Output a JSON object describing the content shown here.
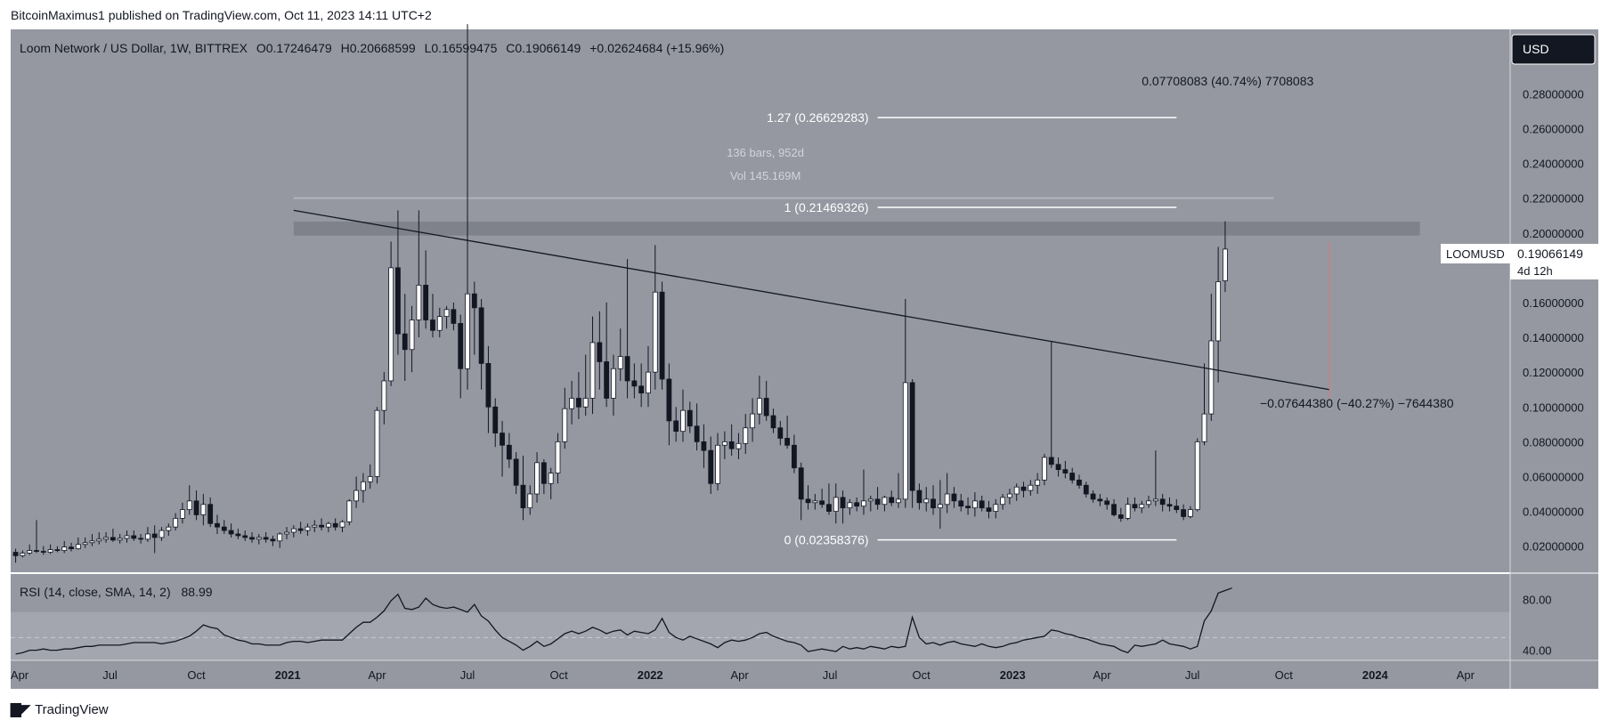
{
  "header": {
    "publisher": "BitcoinMaximus1 published on TradingView.com, Oct 11, 2023 14:11 UTC+2"
  },
  "footer": {
    "brand": "TradingView",
    "logo_icon": "tradingview-logo-icon"
  },
  "colors": {
    "pane_bg": "#9598a1",
    "rsi_band": "#a3a6ae",
    "resistance_zone": "#7f828b",
    "candle_up": "#ffffff",
    "candle_down": "#131722",
    "text_dark": "#131722",
    "text_light": "#d1d4dc",
    "projection_line": "#e57373"
  },
  "chart_data": {
    "type": "candlestick",
    "legend": {
      "symbol": "Loom Network / US Dollar, 1W, BITTREX",
      "o_label": "O",
      "o_value": "0.17246479",
      "h_label": "H",
      "h_value": "0.20668599",
      "l_label": "L",
      "l_value": "0.16599475",
      "c_label": "C",
      "c_value": "0.19066149",
      "change": "+0.02624684 (+15.96%)"
    },
    "currency_button": "USD",
    "price_axis": {
      "ylim": [
        0.005,
        0.317
      ],
      "ticks": [
        "0.28000000",
        "0.26000000",
        "0.24000000",
        "0.22000000",
        "0.20000000",
        "0.16000000",
        "0.14000000",
        "0.12000000",
        "0.10000000",
        "0.08000000",
        "0.06000000",
        "0.04000000",
        "0.02000000"
      ]
    },
    "last_price": {
      "symbol": "LOOMUSD",
      "price": "0.19066149",
      "countdown": "4d 12h"
    },
    "time_axis": {
      "labels": [
        "Apr",
        "Jul",
        "Oct",
        "2021",
        "Apr",
        "Jul",
        "Oct",
        "2022",
        "Apr",
        "Jul",
        "Oct",
        "2023",
        "Apr",
        "Jul",
        "Oct",
        "2024",
        "Apr"
      ],
      "bold": [
        "2021",
        "2022",
        "2023",
        "2024"
      ],
      "start_date": "2020-04-01",
      "end_date": "2024-05-20"
    },
    "candles_ohlc": [
      [
        0.0165,
        0.0185,
        0.0105,
        0.0145
      ],
      [
        0.0145,
        0.0175,
        0.0135,
        0.016
      ],
      [
        0.016,
        0.021,
        0.015,
        0.0175
      ],
      [
        0.0175,
        0.035,
        0.016,
        0.017
      ],
      [
        0.017,
        0.02,
        0.015,
        0.0165
      ],
      [
        0.0165,
        0.021,
        0.0155,
        0.018
      ],
      [
        0.018,
        0.02,
        0.0165,
        0.0175
      ],
      [
        0.0175,
        0.023,
        0.016,
        0.0195
      ],
      [
        0.0195,
        0.022,
        0.017,
        0.0185
      ],
      [
        0.0185,
        0.025,
        0.018,
        0.021
      ],
      [
        0.021,
        0.025,
        0.019,
        0.022
      ],
      [
        0.022,
        0.027,
        0.02,
        0.023
      ],
      [
        0.023,
        0.028,
        0.021,
        0.024
      ],
      [
        0.024,
        0.028,
        0.022,
        0.025
      ],
      [
        0.025,
        0.03,
        0.0225,
        0.0235
      ],
      [
        0.0235,
        0.027,
        0.0215,
        0.0245
      ],
      [
        0.0245,
        0.029,
        0.022,
        0.026
      ],
      [
        0.026,
        0.029,
        0.023,
        0.0245
      ],
      [
        0.0245,
        0.027,
        0.0215,
        0.024
      ],
      [
        0.024,
        0.031,
        0.0225,
        0.027
      ],
      [
        0.027,
        0.032,
        0.016,
        0.025
      ],
      [
        0.025,
        0.031,
        0.023,
        0.029
      ],
      [
        0.029,
        0.033,
        0.026,
        0.031
      ],
      [
        0.031,
        0.039,
        0.029,
        0.036
      ],
      [
        0.036,
        0.045,
        0.033,
        0.041
      ],
      [
        0.041,
        0.055,
        0.038,
        0.046
      ],
      [
        0.046,
        0.052,
        0.035,
        0.038
      ],
      [
        0.038,
        0.05,
        0.032,
        0.044
      ],
      [
        0.044,
        0.048,
        0.031,
        0.033
      ],
      [
        0.033,
        0.038,
        0.027,
        0.031
      ],
      [
        0.031,
        0.035,
        0.027,
        0.029
      ],
      [
        0.029,
        0.033,
        0.025,
        0.027
      ],
      [
        0.027,
        0.03,
        0.024,
        0.026
      ],
      [
        0.026,
        0.029,
        0.023,
        0.025
      ],
      [
        0.025,
        0.028,
        0.022,
        0.024
      ],
      [
        0.024,
        0.027,
        0.021,
        0.025
      ],
      [
        0.025,
        0.028,
        0.022,
        0.024
      ],
      [
        0.024,
        0.026,
        0.02,
        0.023
      ],
      [
        0.023,
        0.028,
        0.019,
        0.027
      ],
      [
        0.027,
        0.031,
        0.024,
        0.028
      ],
      [
        0.028,
        0.032,
        0.025,
        0.03
      ],
      [
        0.03,
        0.034,
        0.027,
        0.029
      ],
      [
        0.029,
        0.033,
        0.026,
        0.031
      ],
      [
        0.031,
        0.035,
        0.028,
        0.032
      ],
      [
        0.032,
        0.036,
        0.029,
        0.031
      ],
      [
        0.031,
        0.034,
        0.028,
        0.033
      ],
      [
        0.033,
        0.036,
        0.029,
        0.031
      ],
      [
        0.031,
        0.035,
        0.028,
        0.034
      ],
      [
        0.034,
        0.047,
        0.032,
        0.046
      ],
      [
        0.046,
        0.06,
        0.042,
        0.052
      ],
      [
        0.052,
        0.062,
        0.045,
        0.057
      ],
      [
        0.057,
        0.067,
        0.053,
        0.06
      ],
      [
        0.06,
        0.1,
        0.056,
        0.098
      ],
      [
        0.098,
        0.12,
        0.09,
        0.115
      ],
      [
        0.115,
        0.195,
        0.112,
        0.18
      ],
      [
        0.18,
        0.213,
        0.13,
        0.142
      ],
      [
        0.142,
        0.165,
        0.115,
        0.133
      ],
      [
        0.133,
        0.158,
        0.12,
        0.15
      ],
      [
        0.15,
        0.213,
        0.14,
        0.17
      ],
      [
        0.17,
        0.19,
        0.145,
        0.15
      ],
      [
        0.15,
        0.165,
        0.14,
        0.144
      ],
      [
        0.144,
        0.157,
        0.14,
        0.152
      ],
      [
        0.152,
        0.158,
        0.145,
        0.156
      ],
      [
        0.156,
        0.16,
        0.144,
        0.148
      ],
      [
        0.148,
        0.153,
        0.105,
        0.122
      ],
      [
        0.122,
        0.32,
        0.11,
        0.165
      ],
      [
        0.165,
        0.172,
        0.13,
        0.157
      ],
      [
        0.157,
        0.162,
        0.11,
        0.125
      ],
      [
        0.125,
        0.135,
        0.085,
        0.1
      ],
      [
        0.1,
        0.105,
        0.077,
        0.085
      ],
      [
        0.085,
        0.092,
        0.06,
        0.078
      ],
      [
        0.078,
        0.085,
        0.065,
        0.07
      ],
      [
        0.07,
        0.074,
        0.05,
        0.055
      ],
      [
        0.055,
        0.072,
        0.035,
        0.042
      ],
      [
        0.042,
        0.055,
        0.038,
        0.05
      ],
      [
        0.05,
        0.074,
        0.045,
        0.068
      ],
      [
        0.068,
        0.07,
        0.05,
        0.056
      ],
      [
        0.056,
        0.065,
        0.047,
        0.062
      ],
      [
        0.062,
        0.085,
        0.056,
        0.08
      ],
      [
        0.08,
        0.111,
        0.076,
        0.099
      ],
      [
        0.099,
        0.115,
        0.09,
        0.105
      ],
      [
        0.105,
        0.12,
        0.093,
        0.1
      ],
      [
        0.1,
        0.13,
        0.095,
        0.105
      ],
      [
        0.105,
        0.152,
        0.096,
        0.137
      ],
      [
        0.137,
        0.155,
        0.11,
        0.126
      ],
      [
        0.126,
        0.16,
        0.1,
        0.105
      ],
      [
        0.105,
        0.13,
        0.095,
        0.122
      ],
      [
        0.122,
        0.145,
        0.115,
        0.129
      ],
      [
        0.129,
        0.185,
        0.105,
        0.115
      ],
      [
        0.115,
        0.125,
        0.105,
        0.112
      ],
      [
        0.112,
        0.125,
        0.1,
        0.108
      ],
      [
        0.108,
        0.135,
        0.1,
        0.12
      ],
      [
        0.12,
        0.193,
        0.11,
        0.166
      ],
      [
        0.166,
        0.172,
        0.11,
        0.116
      ],
      [
        0.116,
        0.125,
        0.078,
        0.092
      ],
      [
        0.092,
        0.1,
        0.08,
        0.086
      ],
      [
        0.086,
        0.11,
        0.08,
        0.098
      ],
      [
        0.098,
        0.103,
        0.085,
        0.089
      ],
      [
        0.089,
        0.102,
        0.075,
        0.08
      ],
      [
        0.08,
        0.09,
        0.065,
        0.075
      ],
      [
        0.075,
        0.083,
        0.05,
        0.056
      ],
      [
        0.056,
        0.085,
        0.052,
        0.078
      ],
      [
        0.078,
        0.086,
        0.07,
        0.08
      ],
      [
        0.08,
        0.09,
        0.072,
        0.076
      ],
      [
        0.076,
        0.085,
        0.07,
        0.079
      ],
      [
        0.079,
        0.096,
        0.073,
        0.088
      ],
      [
        0.088,
        0.105,
        0.08,
        0.096
      ],
      [
        0.096,
        0.118,
        0.09,
        0.105
      ],
      [
        0.105,
        0.115,
        0.092,
        0.095
      ],
      [
        0.095,
        0.099,
        0.085,
        0.088
      ],
      [
        0.088,
        0.092,
        0.078,
        0.082
      ],
      [
        0.082,
        0.095,
        0.076,
        0.078
      ],
      [
        0.078,
        0.084,
        0.062,
        0.065
      ],
      [
        0.065,
        0.068,
        0.035,
        0.047
      ],
      [
        0.047,
        0.055,
        0.041,
        0.045
      ],
      [
        0.045,
        0.05,
        0.041,
        0.046
      ],
      [
        0.046,
        0.053,
        0.042,
        0.044
      ],
      [
        0.044,
        0.056,
        0.038,
        0.04
      ],
      [
        0.04,
        0.056,
        0.033,
        0.048
      ],
      [
        0.048,
        0.052,
        0.033,
        0.042
      ],
      [
        0.042,
        0.047,
        0.038,
        0.045
      ],
      [
        0.045,
        0.048,
        0.04,
        0.043
      ],
      [
        0.043,
        0.064,
        0.038,
        0.046
      ],
      [
        0.046,
        0.049,
        0.04,
        0.047
      ],
      [
        0.047,
        0.054,
        0.041,
        0.044
      ],
      [
        0.044,
        0.049,
        0.04,
        0.048
      ],
      [
        0.048,
        0.052,
        0.043,
        0.045
      ],
      [
        0.045,
        0.062,
        0.042,
        0.047
      ],
      [
        0.047,
        0.162,
        0.042,
        0.114
      ],
      [
        0.114,
        0.116,
        0.042,
        0.052
      ],
      [
        0.052,
        0.056,
        0.041,
        0.045
      ],
      [
        0.045,
        0.054,
        0.04,
        0.047
      ],
      [
        0.047,
        0.055,
        0.038,
        0.042
      ],
      [
        0.042,
        0.058,
        0.03,
        0.044
      ],
      [
        0.044,
        0.062,
        0.039,
        0.05
      ],
      [
        0.05,
        0.054,
        0.042,
        0.046
      ],
      [
        0.046,
        0.05,
        0.04,
        0.043
      ],
      [
        0.043,
        0.048,
        0.038,
        0.042
      ],
      [
        0.042,
        0.051,
        0.037,
        0.046
      ],
      [
        0.046,
        0.049,
        0.04,
        0.042
      ],
      [
        0.042,
        0.046,
        0.036,
        0.04
      ],
      [
        0.04,
        0.047,
        0.036,
        0.044
      ],
      [
        0.044,
        0.05,
        0.041,
        0.048
      ],
      [
        0.048,
        0.053,
        0.044,
        0.05
      ],
      [
        0.05,
        0.056,
        0.046,
        0.054
      ],
      [
        0.054,
        0.057,
        0.048,
        0.052
      ],
      [
        0.052,
        0.058,
        0.049,
        0.055
      ],
      [
        0.055,
        0.062,
        0.05,
        0.058
      ],
      [
        0.058,
        0.073,
        0.055,
        0.071
      ],
      [
        0.071,
        0.138,
        0.065,
        0.067
      ],
      [
        0.067,
        0.071,
        0.06,
        0.064
      ],
      [
        0.064,
        0.069,
        0.059,
        0.062
      ],
      [
        0.062,
        0.065,
        0.056,
        0.058
      ],
      [
        0.058,
        0.061,
        0.053,
        0.055
      ],
      [
        0.055,
        0.057,
        0.048,
        0.05
      ],
      [
        0.05,
        0.052,
        0.045,
        0.047
      ],
      [
        0.047,
        0.05,
        0.043,
        0.046
      ],
      [
        0.046,
        0.048,
        0.041,
        0.044
      ],
      [
        0.044,
        0.047,
        0.037,
        0.038
      ],
      [
        0.038,
        0.042,
        0.034,
        0.036
      ],
      [
        0.036,
        0.048,
        0.035,
        0.044
      ],
      [
        0.044,
        0.048,
        0.04,
        0.042
      ],
      [
        0.042,
        0.046,
        0.039,
        0.044
      ],
      [
        0.044,
        0.049,
        0.042,
        0.046
      ],
      [
        0.046,
        0.075,
        0.043,
        0.047
      ],
      [
        0.047,
        0.05,
        0.04,
        0.044
      ],
      [
        0.044,
        0.048,
        0.04,
        0.043
      ],
      [
        0.043,
        0.047,
        0.039,
        0.041
      ],
      [
        0.041,
        0.044,
        0.035,
        0.037
      ],
      [
        0.037,
        0.043,
        0.036,
        0.041
      ],
      [
        0.041,
        0.082,
        0.04,
        0.08
      ],
      [
        0.08,
        0.125,
        0.078,
        0.096
      ],
      [
        0.096,
        0.165,
        0.092,
        0.138
      ],
      [
        0.138,
        0.192,
        0.114,
        0.172
      ],
      [
        0.1725,
        0.2067,
        0.166,
        0.1907
      ]
    ],
    "rsi": {
      "label": "RSI (14, close, SMA, 14, 2)",
      "value": "88.99",
      "ticks": [
        "80.00",
        "40.00"
      ],
      "band": [
        30,
        70
      ],
      "midline": 50,
      "ylim": [
        32,
        100
      ],
      "values": [
        37,
        38,
        40,
        40,
        41,
        40,
        40,
        41,
        41,
        42,
        43,
        43,
        44,
        44,
        44,
        44,
        45,
        46,
        46,
        46,
        46,
        45,
        46,
        47,
        49,
        51,
        55,
        60,
        58,
        57,
        52,
        50,
        48,
        47,
        45,
        45,
        44,
        44,
        44,
        46,
        47,
        47,
        46,
        47,
        48,
        48,
        48,
        48,
        53,
        58,
        62,
        62,
        66,
        71,
        79,
        84,
        73,
        72,
        74,
        81,
        76,
        74,
        73,
        74,
        72,
        70,
        76,
        67,
        63,
        56,
        50,
        47,
        44,
        40,
        43,
        47,
        43,
        45,
        49,
        53,
        55,
        53,
        55,
        58,
        56,
        53,
        55,
        56,
        52,
        55,
        54,
        53,
        56,
        65,
        54,
        50,
        48,
        51,
        49,
        47,
        45,
        42,
        46,
        48,
        47,
        48,
        50,
        53,
        54,
        51,
        49,
        47,
        46,
        44,
        39,
        40,
        41,
        40,
        39,
        43,
        41,
        42,
        41,
        43,
        42,
        41,
        43,
        42,
        43,
        66,
        50,
        45,
        46,
        44,
        46,
        47,
        45,
        44,
        43,
        45,
        43,
        42,
        43,
        45,
        46,
        48,
        49,
        50,
        51,
        56,
        55,
        53,
        52,
        50,
        49,
        47,
        45,
        44,
        43,
        40,
        38,
        44,
        43,
        44,
        45,
        48,
        45,
        44,
        43,
        41,
        43,
        63,
        71,
        85,
        87,
        89
      ]
    },
    "trendline": {
      "from": [
        "2021-01-11",
        0.213
      ],
      "to": [
        "2023-11-20",
        0.11
      ]
    },
    "resistance_zone": {
      "from": "2021-01-11",
      "to": "2024-02-19",
      "low": 0.1985,
      "high": 0.2065
    },
    "fib_levels": [
      {
        "label": "1.27 (0.26629283)",
        "price": 0.2663
      },
      {
        "label": "1 (0.21469326)",
        "price": 0.2147
      },
      {
        "label": "0 (0.02358376)",
        "price": 0.0236
      }
    ],
    "fib_span": {
      "from": "2022-08-22",
      "to": "2023-06-19"
    },
    "range_tool": {
      "label_bars": "136 bars, 952d",
      "label_vol": "Vol 145.169M",
      "price": 0.22,
      "from": "2021-01-11",
      "to": "2023-09-25"
    },
    "projection_up": "0.07708083 (40.74%) 7708083",
    "projection_down": "−0.07644380 (−40.27%) −7644380",
    "projection_line": {
      "date": "2023-11-20",
      "low": 0.105,
      "high": 0.195
    }
  }
}
